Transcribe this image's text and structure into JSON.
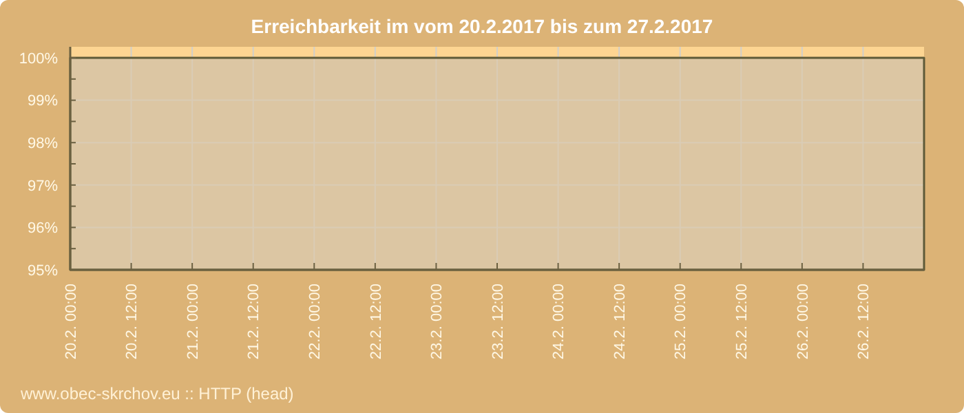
{
  "chart_data": {
    "type": "area",
    "title": "Erreichbarkeit im vom 20.2.2017 bis zum 27.2.2017",
    "x": [
      "2017-02-20T00:00",
      "2017-02-27T00:00"
    ],
    "series": [
      {
        "color": "#dccbaf",
        "values": [
          100,
          100
        ]
      }
    ],
    "xlim": [
      "2017-02-20T00:00",
      "2017-02-27T00:00"
    ],
    "xticks": [
      {
        "value": "2017-02-20T00:00",
        "label": "20.2. 00:00"
      },
      {
        "value": "2017-02-20T12:00",
        "label": "20.2. 12:00"
      },
      {
        "value": "2017-02-21T00:00",
        "label": "21.2. 00:00"
      },
      {
        "value": "2017-02-21T12:00",
        "label": "21.2. 12:00"
      },
      {
        "value": "2017-02-22T00:00",
        "label": "22.2. 00:00"
      },
      {
        "value": "2017-02-22T12:00",
        "label": "22.2. 12:00"
      },
      {
        "value": "2017-02-23T00:00",
        "label": "23.2. 00:00"
      },
      {
        "value": "2017-02-23T12:00",
        "label": "23.2. 12:00"
      },
      {
        "value": "2017-02-24T00:00",
        "label": "24.2. 00:00"
      },
      {
        "value": "2017-02-24T12:00",
        "label": "24.2. 12:00"
      },
      {
        "value": "2017-02-25T00:00",
        "label": "25.2. 00:00"
      },
      {
        "value": "2017-02-25T12:00",
        "label": "25.2. 12:00"
      },
      {
        "value": "2017-02-26T00:00",
        "label": "26.2. 00:00"
      },
      {
        "value": "2017-02-26T12:00",
        "label": "26.2. 12:00"
      }
    ],
    "ylim": [
      95,
      100.26
    ],
    "yticks": [
      {
        "value": 95,
        "label": "95%"
      },
      {
        "value": 95.5,
        "label": null
      },
      {
        "value": 96,
        "label": "96%"
      },
      {
        "value": 96.5,
        "label": null
      },
      {
        "value": 97,
        "label": "97%"
      },
      {
        "value": 97.5,
        "label": null
      },
      {
        "value": 98,
        "label": "98%"
      },
      {
        "value": 98.5,
        "label": null
      },
      {
        "value": 99,
        "label": "99%"
      },
      {
        "value": 99.5,
        "label": null
      },
      {
        "value": 100,
        "label": "100%"
      }
    ],
    "bands": [
      {
        "axis": "y",
        "from": 100,
        "to": 100.26,
        "color": "#fdd592"
      }
    ],
    "grid": true,
    "annotations": [
      "www.obec-skrchov.eu :: HTTP (head)"
    ]
  }
}
